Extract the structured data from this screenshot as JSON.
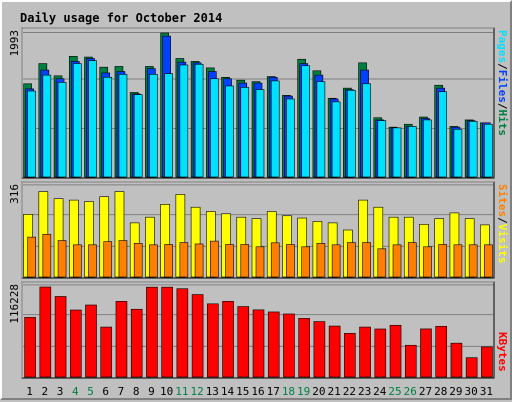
{
  "title": "Daily usage for October 2014",
  "colors": {
    "background": "#c0c0c0",
    "plot_bg": "#c0c0c0",
    "hits": "#008040",
    "files": "#0040ff",
    "pages": "#00e0ff",
    "visits": "#ffff00",
    "sites": "#ff8000",
    "kbytes": "#ff0000",
    "title": "#0000ff",
    "weekend": "#008040",
    "weekday": "#000000"
  },
  "axis_labels": {
    "top": {
      "hits": "Hits",
      "files": "Files",
      "pages": "Pages",
      "sep": "/"
    },
    "middle": {
      "visits": "Visits",
      "sites": "Sites",
      "sep": "/"
    },
    "bottom": {
      "kbytes": "KBytes"
    }
  },
  "chart_data": [
    {
      "type": "bar",
      "panel": "hits-files-pages",
      "ylabel": "1993",
      "ymax": 1993,
      "categories": [
        "1",
        "2",
        "3",
        "4",
        "5",
        "6",
        "7",
        "8",
        "9",
        "10",
        "11",
        "12",
        "13",
        "14",
        "15",
        "16",
        "17",
        "18",
        "19",
        "20",
        "21",
        "22",
        "23",
        "24",
        "25",
        "26",
        "27",
        "28",
        "29",
        "30",
        "31"
      ],
      "weekend_days": [
        "4",
        "5",
        "11",
        "12",
        "18",
        "19",
        "25",
        "26"
      ],
      "series": [
        {
          "name": "Hits",
          "values": [
            1290,
            1570,
            1400,
            1670,
            1660,
            1520,
            1530,
            1170,
            1530,
            1993,
            1640,
            1600,
            1510,
            1380,
            1340,
            1320,
            1390,
            1130,
            1630,
            1470,
            1090,
            1230,
            1580,
            820,
            690,
            730,
            830,
            1270,
            700,
            790,
            750
          ]
        },
        {
          "name": "Files",
          "values": [
            1220,
            1480,
            1360,
            1600,
            1640,
            1440,
            1460,
            1150,
            1500,
            1950,
            1590,
            1580,
            1460,
            1360,
            1300,
            1300,
            1380,
            1120,
            1570,
            1410,
            1080,
            1210,
            1480,
            790,
            680,
            700,
            810,
            1230,
            690,
            780,
            750
          ]
        },
        {
          "name": "Pages",
          "values": [
            1190,
            1410,
            1310,
            1570,
            1610,
            1380,
            1420,
            1140,
            1420,
            1430,
            1550,
            1560,
            1360,
            1260,
            1240,
            1210,
            1330,
            1080,
            1540,
            1320,
            1040,
            1200,
            1290,
            780,
            680,
            700,
            790,
            1180,
            660,
            770,
            730
          ]
        }
      ]
    },
    {
      "type": "bar",
      "panel": "visits-sites",
      "ylabel": "316",
      "ymax": 316,
      "categories": [
        "1",
        "2",
        "3",
        "4",
        "5",
        "6",
        "7",
        "8",
        "9",
        "10",
        "11",
        "12",
        "13",
        "14",
        "15",
        "16",
        "17",
        "18",
        "19",
        "20",
        "21",
        "22",
        "23",
        "24",
        "25",
        "26",
        "27",
        "28",
        "29",
        "30",
        "31"
      ],
      "series": [
        {
          "name": "Visits",
          "values": [
            220,
            300,
            275,
            270,
            265,
            282,
            300,
            190,
            210,
            255,
            290,
            245,
            230,
            222,
            210,
            205,
            230,
            215,
            207,
            195,
            190,
            165,
            270,
            245,
            210,
            210,
            185,
            205,
            225,
            205,
            183
          ]
        },
        {
          "name": "Sites",
          "values": [
            140,
            150,
            128,
            113,
            113,
            124,
            128,
            118,
            113,
            114,
            121,
            116,
            126,
            114,
            114,
            106,
            120,
            114,
            106,
            118,
            113,
            121,
            121,
            99,
            113,
            121,
            106,
            114,
            113,
            113,
            113
          ]
        }
      ]
    },
    {
      "type": "bar",
      "panel": "kbytes",
      "ylabel": "116228",
      "ymax": 116228,
      "categories": [
        "1",
        "2",
        "3",
        "4",
        "5",
        "6",
        "7",
        "8",
        "9",
        "10",
        "11",
        "12",
        "13",
        "14",
        "15",
        "16",
        "17",
        "18",
        "19",
        "20",
        "21",
        "22",
        "23",
        "24",
        "25",
        "26",
        "27",
        "28",
        "29",
        "30",
        "31"
      ],
      "series": [
        {
          "name": "KBytes",
          "values": [
            77000,
            116228,
            104000,
            86500,
            93000,
            64500,
            97700,
            87500,
            116000,
            116000,
            114000,
            106500,
            94500,
            97700,
            91000,
            86700,
            84000,
            81400,
            75700,
            71600,
            65800,
            56400,
            64500,
            62000,
            66800,
            41000,
            62100,
            65500,
            43700,
            25000,
            38900
          ]
        }
      ]
    }
  ]
}
